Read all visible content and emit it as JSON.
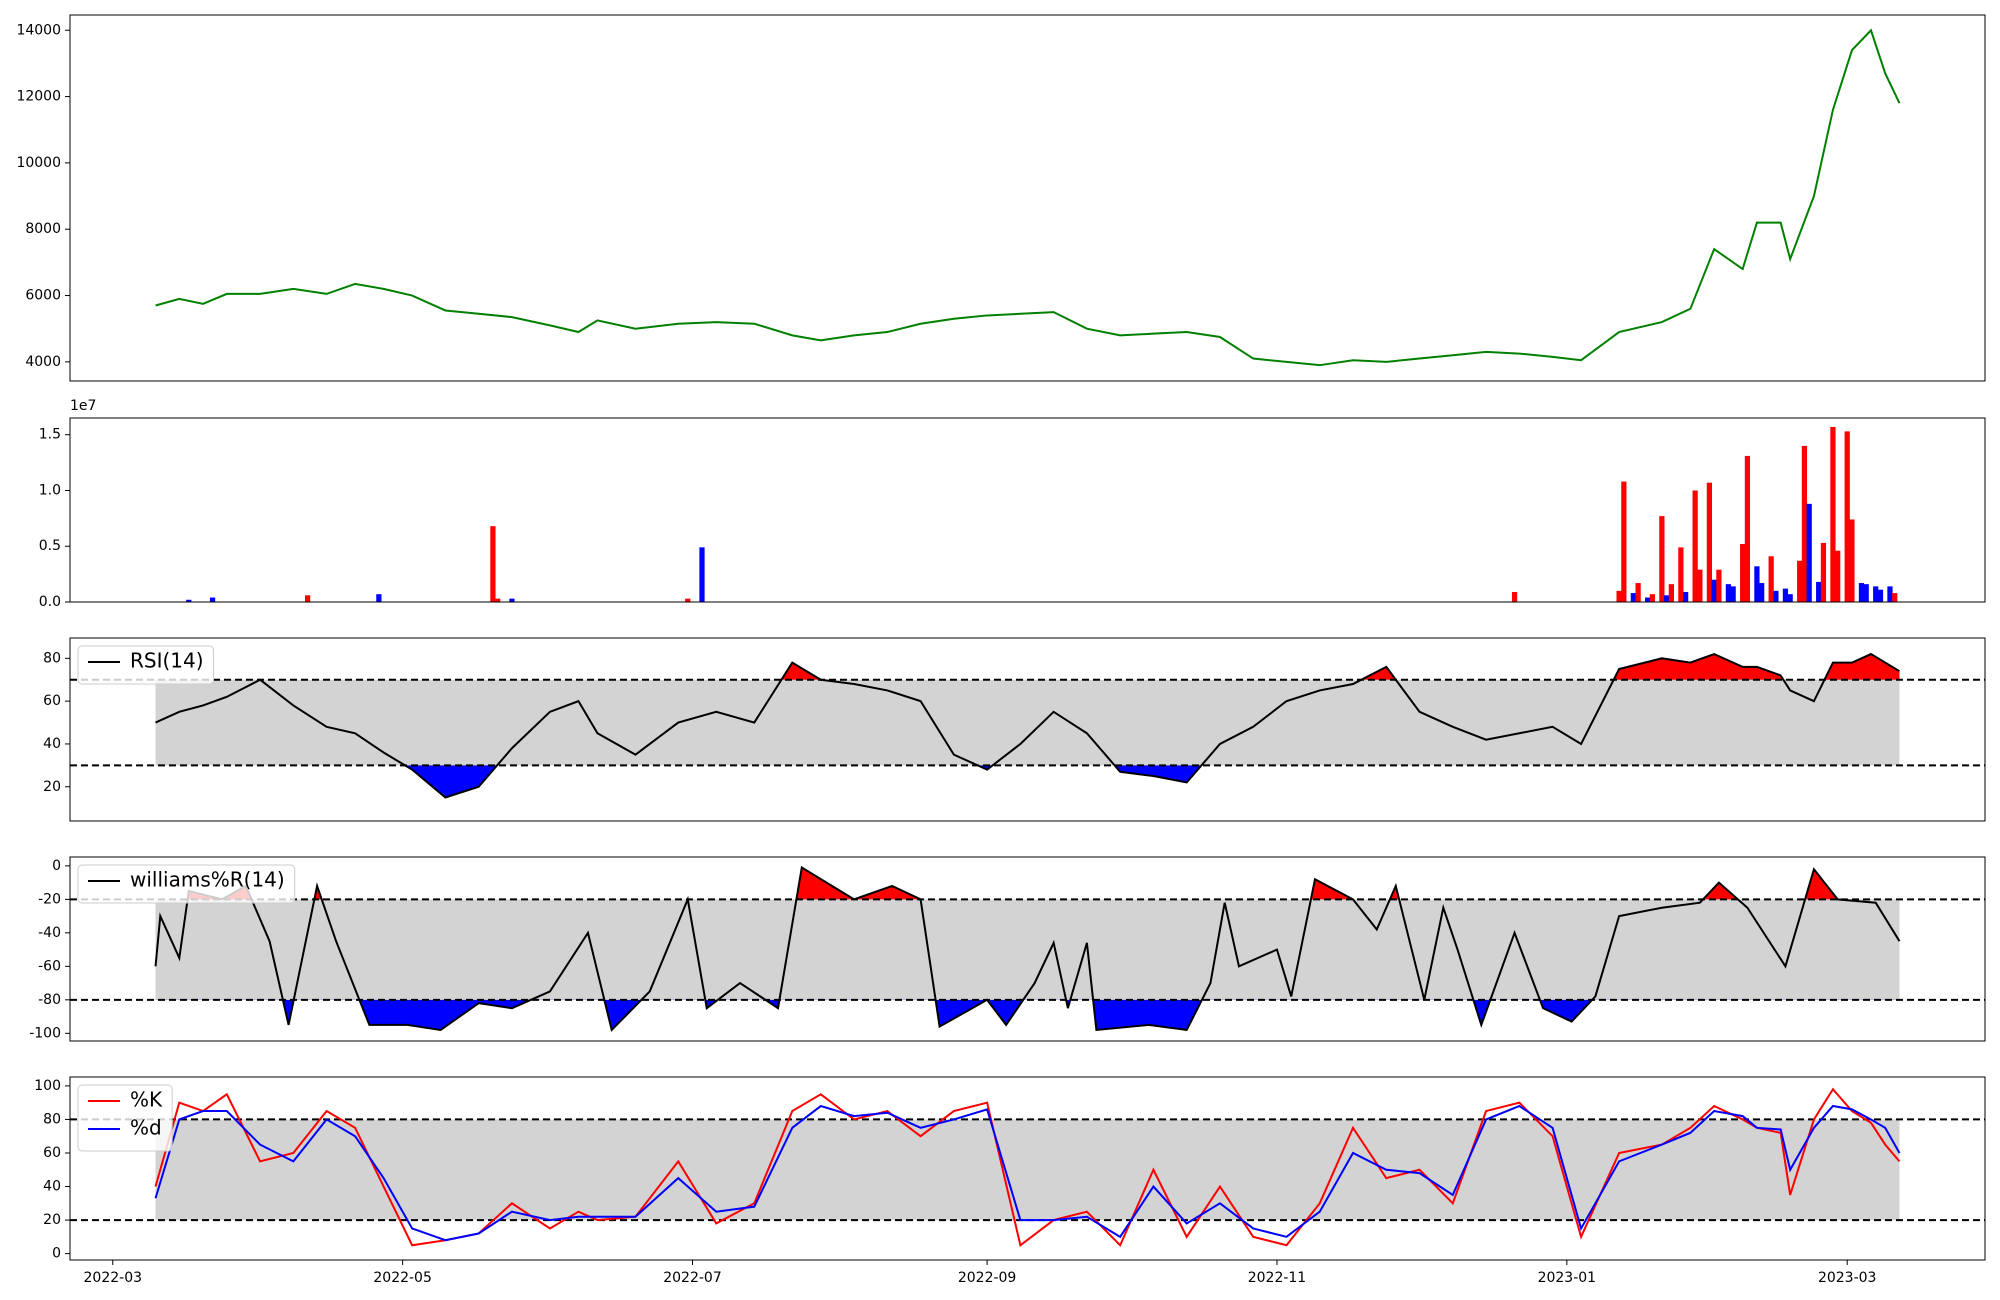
{
  "chart_data": [
    {
      "type": "line",
      "color": "green",
      "x": [
        9,
        14,
        19,
        24,
        31,
        38,
        45,
        51,
        57,
        63,
        70,
        77,
        84,
        92,
        98,
        102,
        110,
        119,
        127,
        135,
        143,
        149,
        156,
        163,
        170,
        177,
        184,
        191,
        198,
        205,
        212,
        219,
        226,
        233,
        240,
        247,
        254,
        261,
        268,
        275,
        282,
        289,
        296,
        303,
        309,
        317,
        326,
        332,
        337,
        343,
        346,
        351,
        353,
        358,
        362,
        366,
        370,
        373,
        376
      ],
      "values": [
        5700,
        5900,
        5750,
        6050,
        6050,
        6200,
        6050,
        6350,
        6200,
        6000,
        5550,
        5450,
        5350,
        5100,
        4900,
        5250,
        5000,
        5150,
        5200,
        5150,
        4800,
        4650,
        4800,
        4900,
        5150,
        5300,
        5400,
        5450,
        5500,
        5000,
        4800,
        4850,
        4900,
        4750,
        4100,
        4000,
        3900,
        4050,
        4000,
        4100,
        4200,
        4300,
        4250,
        4150,
        4050,
        4900,
        5200,
        5600,
        7400,
        6800,
        8200,
        8200,
        7100,
        9000,
        11600,
        13400,
        14000,
        12700,
        11800
      ],
      "xlim": [
        -9,
        394
      ],
      "ylim": [
        3423,
        14460
      ],
      "yticks": [
        4000,
        6000,
        8000,
        10000,
        12000,
        14000
      ]
    },
    {
      "type": "bar",
      "offset_label": "1e7",
      "x": [
        16,
        21,
        41,
        56,
        80,
        81,
        84,
        121,
        124,
        295,
        317,
        318,
        320,
        321,
        323,
        324,
        326,
        327,
        328,
        330,
        331,
        333,
        334,
        336,
        337,
        338,
        340,
        341,
        343,
        344,
        346,
        347,
        349,
        350,
        352,
        353,
        355,
        356,
        357,
        359,
        360,
        362,
        363,
        365,
        366,
        368,
        369,
        371,
        372,
        374,
        375
      ],
      "values": [
        0.02,
        0.04,
        0.06,
        0.07,
        0.68,
        0.03,
        0.03,
        0.03,
        0.49,
        0.09,
        0.1,
        1.08,
        0.08,
        0.17,
        0.04,
        0.07,
        0.77,
        0.06,
        0.16,
        0.49,
        0.09,
        1.0,
        0.29,
        1.07,
        0.2,
        0.29,
        0.16,
        0.14,
        0.52,
        1.31,
        0.32,
        0.17,
        0.41,
        0.1,
        0.12,
        0.07,
        0.37,
        1.4,
        0.88,
        0.18,
        0.53,
        1.57,
        0.46,
        1.53,
        0.74,
        0.17,
        0.16,
        0.14,
        0.11,
        0.14,
        0.08
      ],
      "colors": [
        "blue",
        "blue",
        "red",
        "blue",
        "red",
        "red",
        "blue",
        "red",
        "blue",
        "red",
        "red",
        "red",
        "blue",
        "red",
        "blue",
        "red",
        "red",
        "blue",
        "red",
        "red",
        "blue",
        "red",
        "red",
        "red",
        "blue",
        "red",
        "blue",
        "blue",
        "red",
        "red",
        "blue",
        "blue",
        "red",
        "blue",
        "blue",
        "blue",
        "red",
        "red",
        "blue",
        "blue",
        "red",
        "red",
        "red",
        "red",
        "red",
        "blue",
        "blue",
        "blue",
        "blue",
        "blue",
        "red"
      ],
      "xlim": [
        -9,
        394
      ],
      "ylim": [
        0,
        1.65
      ],
      "yticks": [
        {
          "value": 0,
          "label": "0.0"
        },
        {
          "value": 0.5,
          "label": "0.5"
        },
        {
          "value": 1,
          "label": "1.0"
        },
        {
          "value": 1.5,
          "label": "1.5"
        }
      ]
    },
    {
      "type": "oscillator",
      "x": [
        9,
        14,
        19,
        24,
        31,
        38,
        45,
        51,
        57,
        63,
        70,
        77,
        84,
        92,
        98,
        102,
        110,
        119,
        127,
        135,
        143,
        149,
        156,
        163,
        170,
        177,
        184,
        191,
        198,
        205,
        212,
        219,
        226,
        233,
        240,
        247,
        254,
        261,
        268,
        275,
        282,
        289,
        296,
        303,
        309,
        317,
        326,
        332,
        337,
        343,
        346,
        351,
        353,
        358,
        362,
        366,
        370,
        373,
        376
      ],
      "series": [
        {
          "name": "RSI(14)",
          "color": "black",
          "values": [
            50,
            55,
            58,
            62,
            70,
            58,
            48,
            45,
            36,
            28,
            15,
            20,
            38,
            55,
            60,
            45,
            35,
            50,
            55,
            50,
            78,
            70,
            68,
            65,
            60,
            35,
            28,
            40,
            55,
            45,
            27,
            25,
            22,
            40,
            48,
            60,
            65,
            68,
            76,
            55,
            48,
            42,
            45,
            48,
            40,
            75,
            80,
            78,
            82,
            76,
            76,
            72,
            65,
            60,
            78,
            78,
            82,
            78,
            74
          ]
        }
      ],
      "thresholds": [
        30,
        70
      ],
      "band_color": "lightgray",
      "fill_above": "red",
      "fill_below": "blue",
      "legend": "upper left",
      "xlim": [
        -9,
        394
      ],
      "ylim": [
        4,
        89.5
      ],
      "yticks": [
        20,
        40,
        60,
        80
      ]
    },
    {
      "type": "oscillator",
      "x": [
        9,
        10,
        14,
        16,
        23,
        28,
        33,
        37,
        43,
        47,
        54,
        62,
        69,
        77,
        84,
        92,
        100,
        105,
        113,
        121,
        125,
        132,
        140,
        145,
        156,
        164,
        170,
        174,
        184,
        188,
        194,
        198,
        201,
        205,
        207,
        218,
        226,
        231,
        234,
        237,
        245,
        248,
        253,
        261,
        266,
        270,
        276,
        280,
        283,
        288,
        295,
        301,
        307,
        312,
        317,
        326,
        334,
        338,
        344,
        352,
        358,
        363,
        371,
        376
      ],
      "series": [
        {
          "name": "williams%R(14)",
          "color": "black",
          "values": [
            -60,
            -30,
            -55,
            -15,
            -20,
            -12,
            -45,
            -95,
            -12,
            -45,
            -95,
            -95,
            -98,
            -82,
            -85,
            -75,
            -40,
            -98,
            -75,
            -20,
            -85,
            -70,
            -85,
            -1,
            -20,
            -12,
            -20,
            -96,
            -80,
            -95,
            -70,
            -46,
            -85,
            -46,
            -98,
            -95,
            -98,
            -70,
            -22,
            -60,
            -50,
            -78,
            -8,
            -20,
            -38,
            -12,
            -80,
            -25,
            -50,
            -95,
            -40,
            -85,
            -93,
            -78,
            -30,
            -25,
            -22,
            -10,
            -25,
            -60,
            -2,
            -20,
            -22,
            -45
          ]
        }
      ],
      "thresholds": [
        -80,
        -20
      ],
      "band_color": "lightgray",
      "fill_above": "red",
      "fill_below": "blue",
      "legend": "upper left",
      "xlim": [
        -9,
        394
      ],
      "ylim": [
        -104.6,
        5.3
      ],
      "yticks": [
        -100,
        -80,
        -60,
        -40,
        -20,
        0
      ]
    },
    {
      "type": "oscillator",
      "x": [
        9,
        14,
        19,
        24,
        31,
        38,
        45,
        51,
        57,
        63,
        70,
        77,
        84,
        92,
        98,
        102,
        110,
        119,
        127,
        135,
        143,
        149,
        156,
        163,
        170,
        177,
        184,
        191,
        198,
        205,
        212,
        219,
        226,
        233,
        240,
        247,
        254,
        261,
        268,
        275,
        282,
        289,
        296,
        303,
        309,
        317,
        326,
        332,
        337,
        343,
        346,
        351,
        353,
        358,
        362,
        366,
        370,
        373,
        376
      ],
      "series": [
        {
          "name": "%K",
          "color": "red",
          "values": [
            40,
            90,
            85,
            95,
            55,
            60,
            85,
            75,
            40,
            5,
            8,
            12,
            30,
            15,
            25,
            20,
            22,
            55,
            18,
            30,
            85,
            95,
            80,
            85,
            70,
            85,
            90,
            5,
            20,
            25,
            5,
            50,
            10,
            40,
            10,
            5,
            30,
            75,
            45,
            50,
            30,
            85,
            90,
            70,
            10,
            60,
            65,
            75,
            88,
            80,
            75,
            72,
            35,
            80,
            98,
            85,
            78,
            65,
            55
          ]
        },
        {
          "name": "%d",
          "color": "blue",
          "values": [
            33,
            80,
            85,
            85,
            65,
            55,
            80,
            70,
            45,
            15,
            8,
            12,
            25,
            20,
            22,
            22,
            22,
            45,
            25,
            28,
            75,
            88,
            82,
            84,
            75,
            80,
            86,
            20,
            20,
            22,
            10,
            40,
            18,
            30,
            15,
            10,
            25,
            60,
            50,
            48,
            35,
            80,
            88,
            75,
            15,
            55,
            65,
            72,
            85,
            82,
            75,
            74,
            50,
            75,
            88,
            86,
            80,
            75,
            60
          ]
        }
      ],
      "thresholds": [
        20,
        80
      ],
      "band_color": "lightgray",
      "legend": "upper left",
      "xlim": [
        -9,
        394
      ],
      "ylim": [
        -3.8,
        105.3
      ],
      "yticks": [
        0,
        20,
        40,
        60,
        80,
        100
      ],
      "xticks": [
        {
          "value": 0,
          "label": "2022-03"
        },
        {
          "value": 61,
          "label": "2022-05"
        },
        {
          "value": 122,
          "label": "2022-07"
        },
        {
          "value": 184,
          "label": "2022-09"
        },
        {
          "value": 245,
          "label": "2022-11"
        },
        {
          "value": 306,
          "label": "2023-01"
        },
        {
          "value": 365,
          "label": "2023-03"
        }
      ]
    }
  ]
}
